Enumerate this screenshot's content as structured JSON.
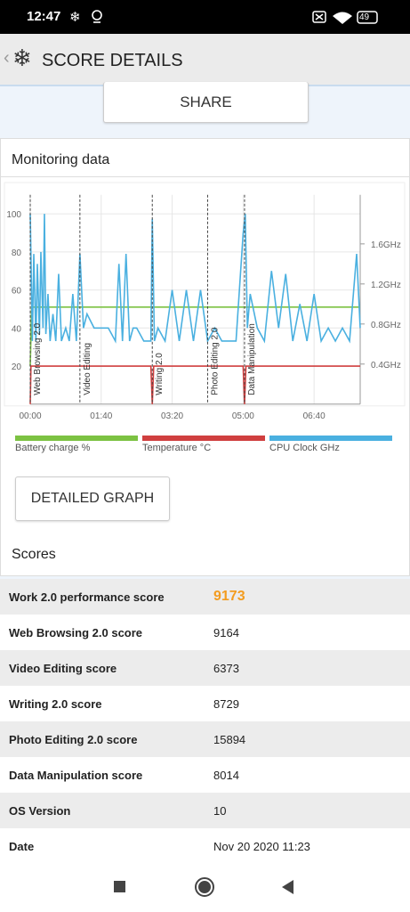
{
  "status_bar": {
    "time": "12:47",
    "battery": "49"
  },
  "header": {
    "title": "SCORE DETAILS"
  },
  "share_button": "SHARE",
  "monitoring": {
    "title": "Monitoring data"
  },
  "chart_data": {
    "type": "line",
    "xlim": [
      0,
      465
    ],
    "xticks": [
      {
        "value": 0,
        "label": "00:00"
      },
      {
        "value": 100,
        "label": "01:40"
      },
      {
        "value": 200,
        "label": "03:20"
      },
      {
        "value": 300,
        "label": "05:00"
      },
      {
        "value": 400,
        "label": "06:40"
      }
    ],
    "ylim": [
      0,
      110
    ],
    "yticks": [
      20,
      40,
      60,
      80,
      100
    ],
    "y2lim": [
      0,
      2.09
    ],
    "y2ticks": [
      {
        "value": 0.4,
        "label": "0.4GHz"
      },
      {
        "value": 0.8,
        "label": "0.8GHz"
      },
      {
        "value": 1.2,
        "label": "1.2GHz"
      },
      {
        "value": 1.6,
        "label": "1.6GHz"
      }
    ],
    "grid": true,
    "annotations": [
      {
        "x": 0,
        "label": "Web Browsing 2.0"
      },
      {
        "x": 70,
        "label": "Video Editing"
      },
      {
        "x": 172,
        "label": "Writing 2.0"
      },
      {
        "x": 250,
        "label": "Photo Editing 2.0"
      },
      {
        "x": 302,
        "label": "Data Manipulation"
      }
    ],
    "series": [
      {
        "name": "Battery charge %",
        "color": "#7cc242",
        "x": [
          0,
          2,
          465
        ],
        "values": [
          20,
          51,
          51
        ]
      },
      {
        "name": "Temperature °C",
        "color": "#d03f3f",
        "x": [
          0,
          1,
          170,
          172,
          174,
          300,
          302,
          304,
          465
        ],
        "values": [
          0,
          20,
          20,
          0,
          20,
          20,
          0,
          20,
          20
        ]
      },
      {
        "name": "CPU Clock GHz",
        "color": "#4ab0e0",
        "axis": "y2",
        "x": [
          0,
          3,
          5,
          8,
          10,
          13,
          15,
          18,
          20,
          22,
          25,
          28,
          32,
          36,
          40,
          44,
          50,
          55,
          60,
          65,
          70,
          75,
          80,
          90,
          100,
          110,
          120,
          125,
          130,
          135,
          140,
          145,
          150,
          160,
          170,
          172,
          175,
          180,
          190,
          200,
          210,
          220,
          230,
          240,
          250,
          260,
          270,
          280,
          290,
          300,
          303,
          306,
          310,
          320,
          330,
          340,
          350,
          360,
          370,
          380,
          390,
          400,
          410,
          420,
          430,
          440,
          450,
          460,
          465
        ],
        "values": [
          1.9,
          0.63,
          1.5,
          0.63,
          1.4,
          0.7,
          1.52,
          0.76,
          1.9,
          0.7,
          1.1,
          0.63,
          0.9,
          0.63,
          1.3,
          0.63,
          0.76,
          0.63,
          1.1,
          0.63,
          1.5,
          0.76,
          0.9,
          0.76,
          0.76,
          0.76,
          0.63,
          1.4,
          0.63,
          1.5,
          0.63,
          0.76,
          0.76,
          0.63,
          0.63,
          1.85,
          0.63,
          0.76,
          0.63,
          1.14,
          0.63,
          1.14,
          0.63,
          1.14,
          0.63,
          0.76,
          0.63,
          0.63,
          0.63,
          1.7,
          1.9,
          0.76,
          1.1,
          0.76,
          0.63,
          1.33,
          0.76,
          1.3,
          0.63,
          1.0,
          0.63,
          1.1,
          0.63,
          0.76,
          0.63,
          0.76,
          0.63,
          1.5,
          0.76
        ]
      }
    ]
  },
  "detailed_graph_button": "DETAILED GRAPH",
  "scores": {
    "title": "Scores",
    "rows": [
      [
        "Work 2.0 performance score",
        "9173"
      ],
      [
        "Web Browsing 2.0 score",
        "9164"
      ],
      [
        "Video Editing score",
        "6373"
      ],
      [
        "Writing 2.0 score",
        "8729"
      ],
      [
        "Photo Editing 2.0 score",
        "15894"
      ],
      [
        "Data Manipulation score",
        "8014"
      ],
      [
        "OS Version",
        "10"
      ],
      [
        "Date",
        "Nov 20 2020 11:23"
      ]
    ]
  }
}
